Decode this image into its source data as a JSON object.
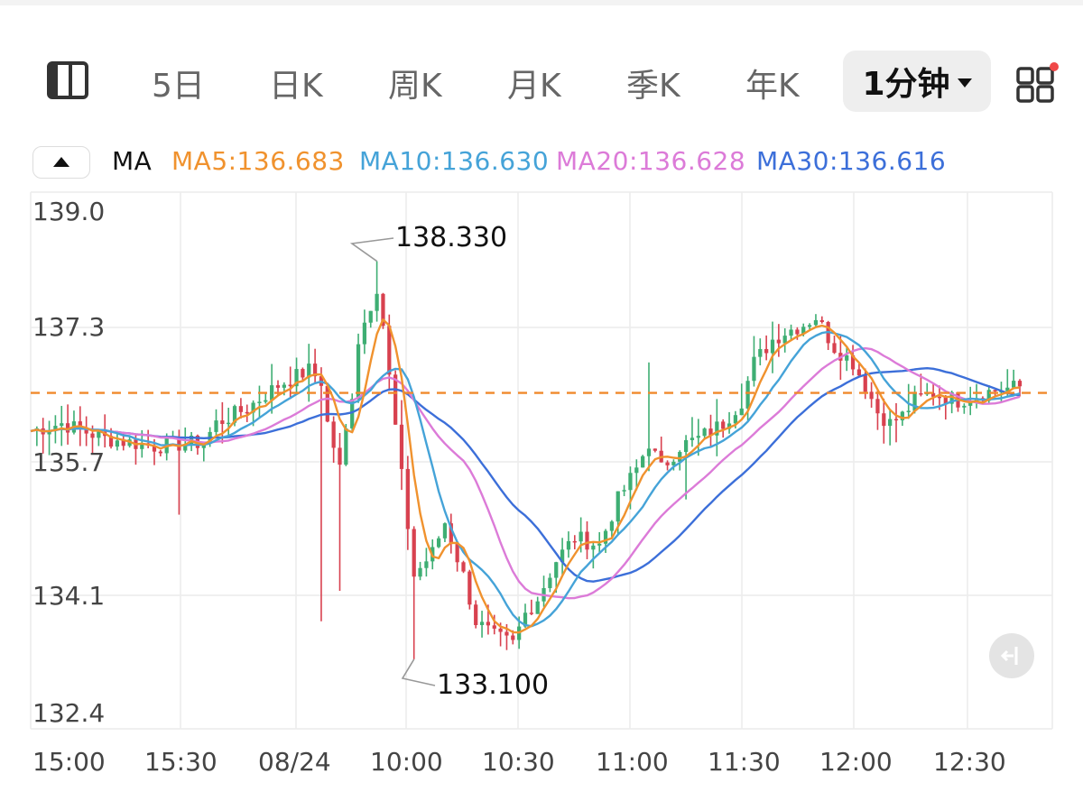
{
  "period_tabs": [
    "5日",
    "日K",
    "周K",
    "月K",
    "季K",
    "年K"
  ],
  "active_period": "1分钟",
  "indicator_name": "MA",
  "ma_values": [
    {
      "label": "MA5:136.683",
      "color": "#f0922e"
    },
    {
      "label": "MA10:136.630",
      "color": "#45a3d8"
    },
    {
      "label": "MA20:136.628",
      "color": "#dc7bd8"
    },
    {
      "label": "MA30:136.616",
      "color": "#3c6fd9"
    }
  ],
  "colors": {
    "up": "#3eae73",
    "down": "#d8414f",
    "reference_line": "#f0892c",
    "notification_dot": "#f04848"
  },
  "icons": {
    "panel": "panel-layout-icon",
    "grid": "grid-icon",
    "collapse": "triangle-up-icon",
    "back": "jump-to-latest-icon"
  },
  "chart_data": {
    "type": "candlestick",
    "interval": "1分钟",
    "y_ticks": [
      "139.0",
      "137.3",
      "135.7",
      "134.1",
      "132.4"
    ],
    "ylim": [
      132.4,
      139.0
    ],
    "x_ticks": [
      "15:00",
      "15:30",
      "08/24",
      "10:00",
      "10:30",
      "11:00",
      "11:30",
      "12:00",
      "12:30"
    ],
    "grid": true,
    "reference_line": 136.6,
    "high_label": "138.330",
    "low_label": "133.100",
    "close_path": [
      [
        0,
        136.1
      ],
      [
        5,
        136.2
      ],
      [
        12,
        136.0
      ],
      [
        20,
        135.9
      ],
      [
        28,
        135.95
      ],
      [
        30,
        136.2
      ],
      [
        35,
        136.4
      ],
      [
        40,
        136.7
      ],
      [
        45,
        136.9
      ],
      [
        47,
        136.75
      ],
      [
        48,
        136.2
      ],
      [
        50,
        135.6
      ],
      [
        52,
        136.6
      ],
      [
        53,
        137.3
      ],
      [
        56,
        138.0
      ],
      [
        57,
        137.5
      ],
      [
        58,
        136.8
      ],
      [
        60,
        135.5
      ],
      [
        62,
        134.2
      ],
      [
        65,
        134.5
      ],
      [
        67,
        134.9
      ],
      [
        70,
        134.2
      ],
      [
        72,
        133.6
      ],
      [
        75,
        133.4
      ],
      [
        78,
        133.3
      ],
      [
        80,
        133.7
      ],
      [
        82,
        133.9
      ],
      [
        85,
        134.4
      ],
      [
        88,
        134.7
      ],
      [
        92,
        134.6
      ],
      [
        95,
        135.2
      ],
      [
        98,
        135.6
      ],
      [
        100,
        135.95
      ],
      [
        102,
        135.6
      ],
      [
        105,
        135.9
      ],
      [
        108,
        136.0
      ],
      [
        110,
        136.1
      ],
      [
        112,
        136.2
      ],
      [
        115,
        136.5
      ],
      [
        117,
        137.0
      ],
      [
        120,
        137.3
      ],
      [
        122,
        137.4
      ],
      [
        125,
        137.5
      ],
      [
        127,
        137.6
      ],
      [
        130,
        137.2
      ],
      [
        133,
        137.0
      ],
      [
        135,
        136.7
      ],
      [
        137,
        136.35
      ],
      [
        139,
        136.2
      ],
      [
        141,
        136.3
      ],
      [
        143,
        136.5
      ],
      [
        146,
        136.6
      ],
      [
        150,
        136.5
      ],
      [
        154,
        136.6
      ],
      [
        157,
        136.65
      ],
      [
        160,
        136.68
      ]
    ],
    "annotations": [
      "138.330",
      "133.100"
    ]
  }
}
